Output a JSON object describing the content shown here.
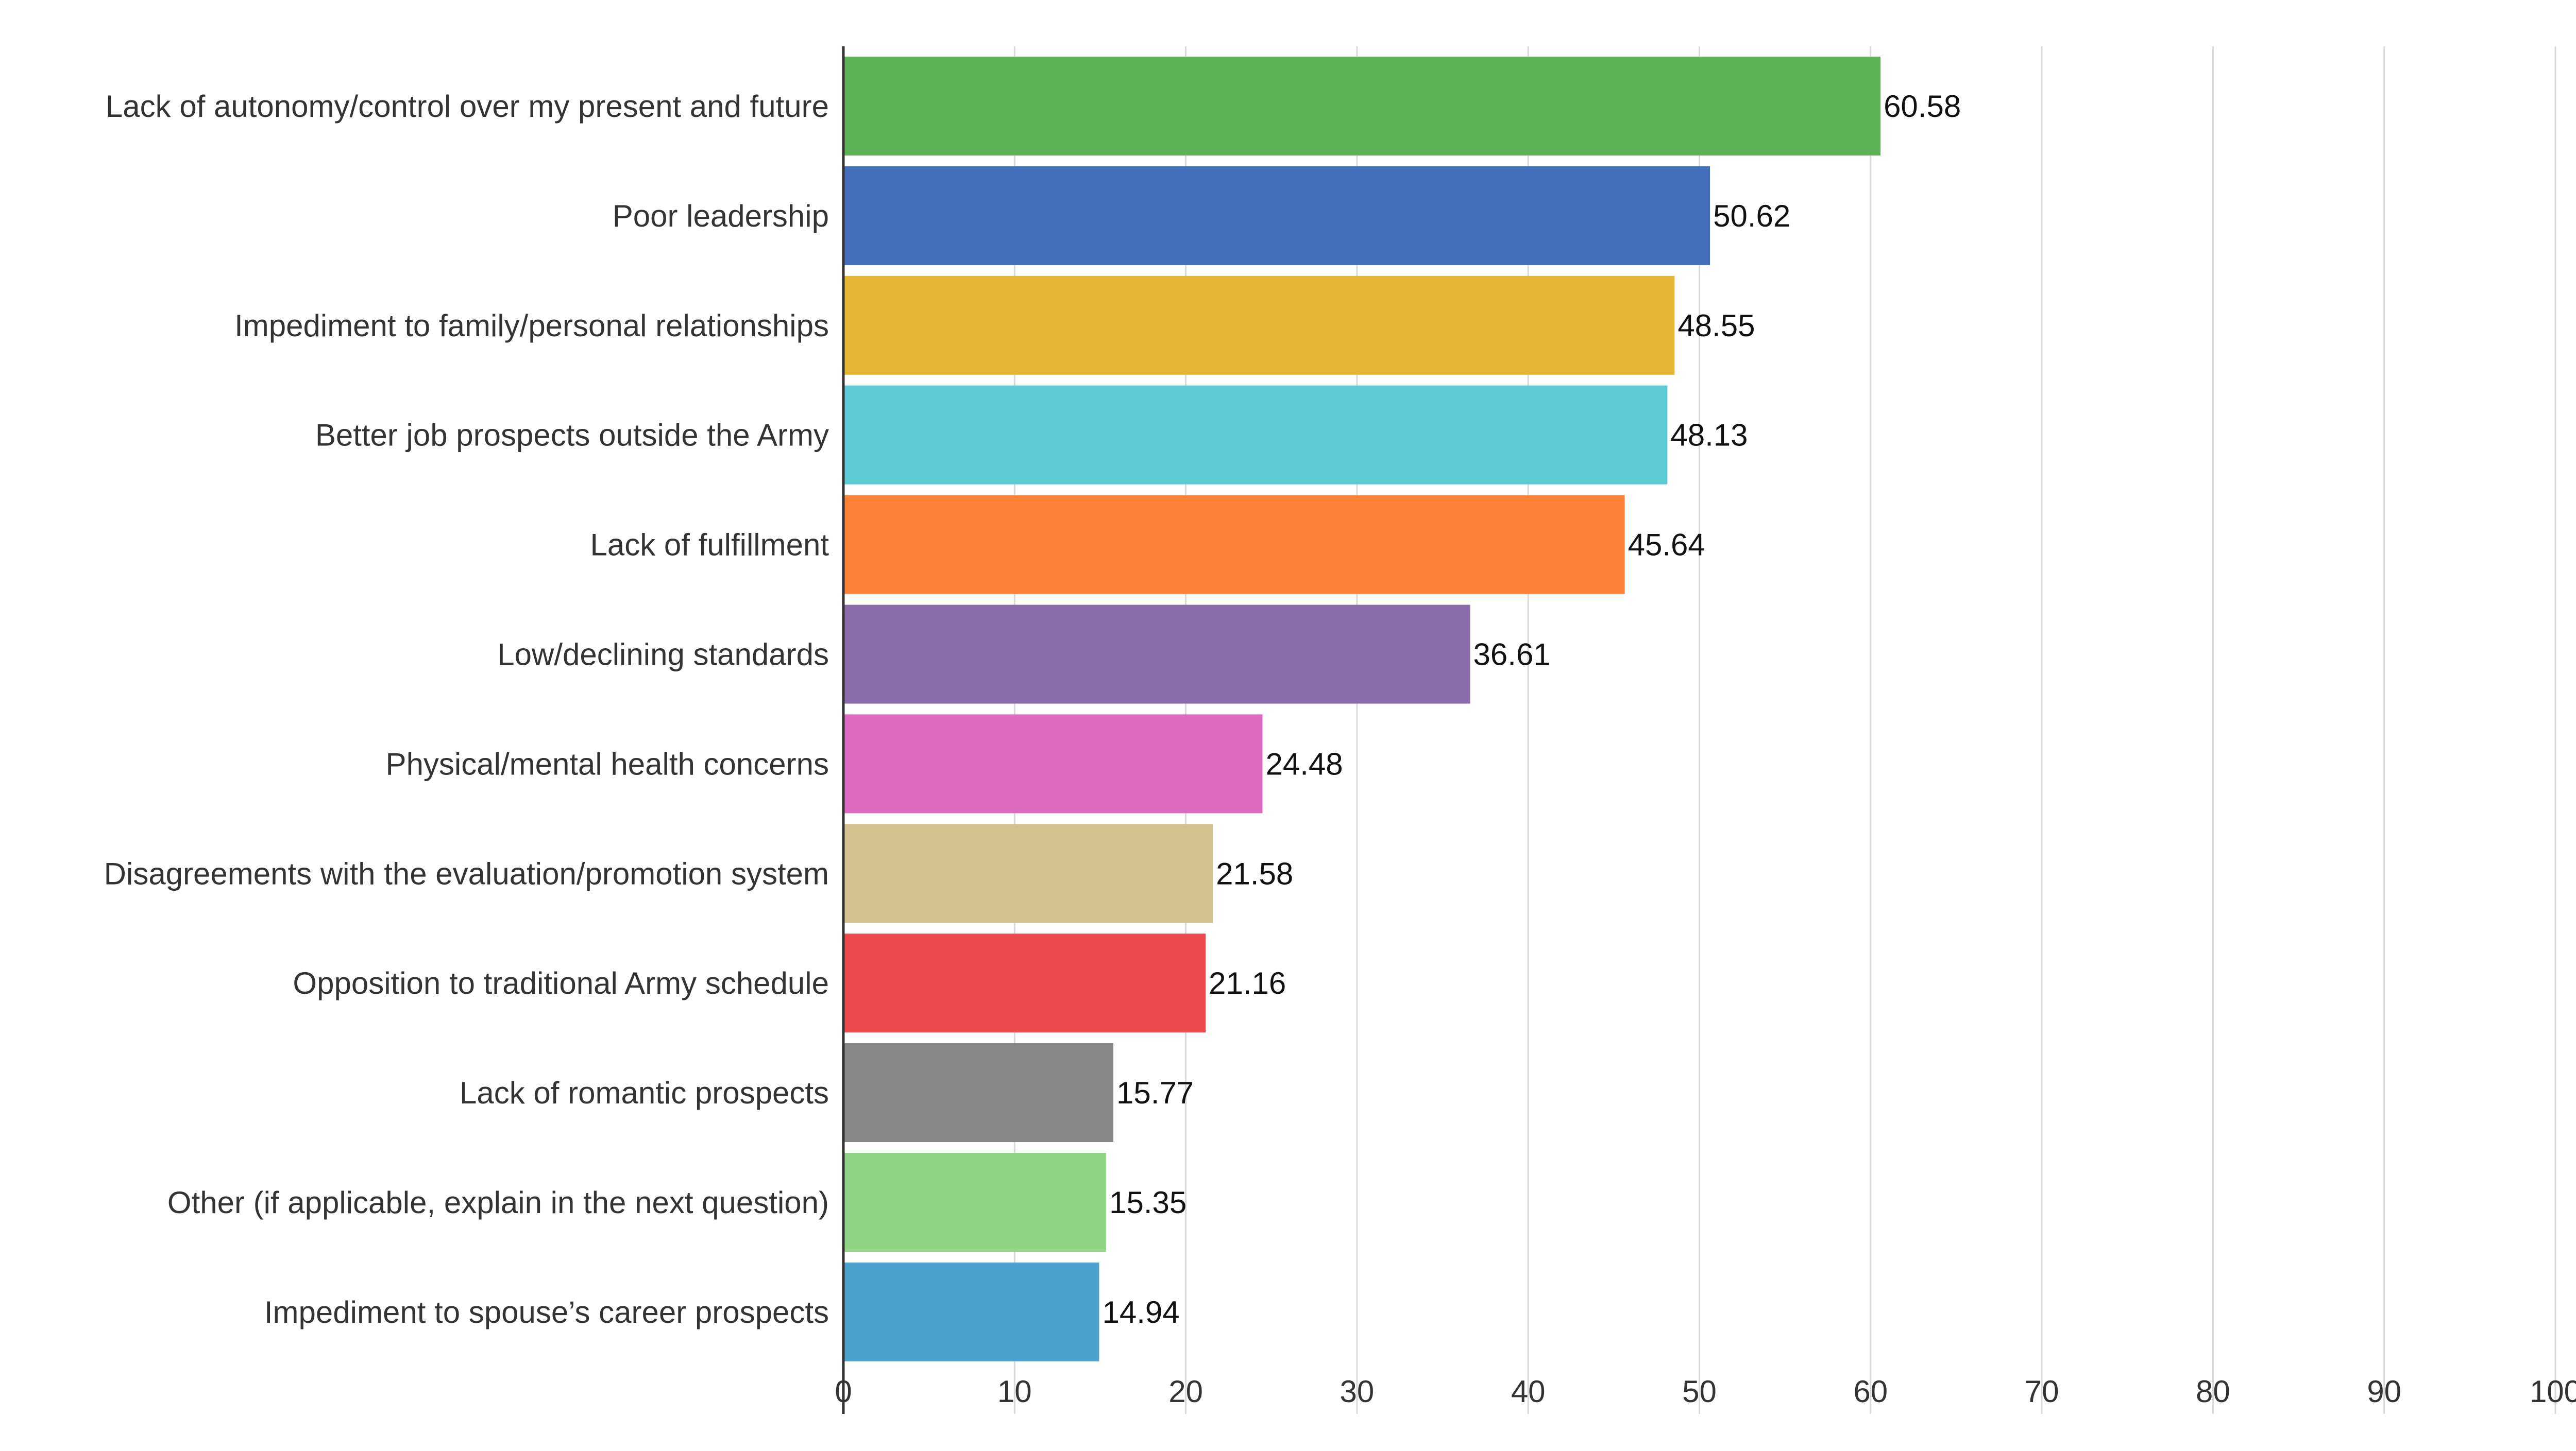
{
  "chart_data": {
    "type": "bar",
    "orientation": "horizontal",
    "categories": [
      "Lack of autonomy/control over my present and future",
      "Poor leadership",
      "Impediment to family/personal relationships",
      "Better job prospects outside the Army",
      "Lack of fulfillment",
      "Low/declining standards",
      "Physical/mental health concerns",
      "Disagreements with the evaluation/promotion system",
      "Opposition to traditional Army schedule",
      "Lack of romantic prospects",
      "Other (if applicable, explain in the next question)",
      "Impediment to spouse’s career prospects"
    ],
    "values": [
      60.58,
      50.62,
      48.55,
      48.13,
      45.64,
      36.61,
      24.48,
      21.58,
      21.16,
      15.77,
      15.35,
      14.94
    ],
    "value_labels": [
      "60.58",
      "50.62",
      "48.55",
      "48.13",
      "45.64",
      "36.61",
      "24.48",
      "21.58",
      "21.16",
      "15.77",
      "15.35",
      "14.94"
    ],
    "colors": [
      "#5db258",
      "#4270ba",
      "#e4b533",
      "#5ccbd3",
      "#fd8238",
      "#8c6dab",
      "#dc69be",
      "#d5c18f",
      "#ec4a4c",
      "#878787",
      "#8fd584",
      "#4da1cd"
    ],
    "xlim": [
      0,
      100
    ],
    "xticks": [
      "0",
      "10",
      "20",
      "30",
      "40",
      "50",
      "60",
      "70",
      "80",
      "90",
      "100"
    ],
    "grid": true,
    "title": "",
    "xlabel": "",
    "ylabel": ""
  }
}
